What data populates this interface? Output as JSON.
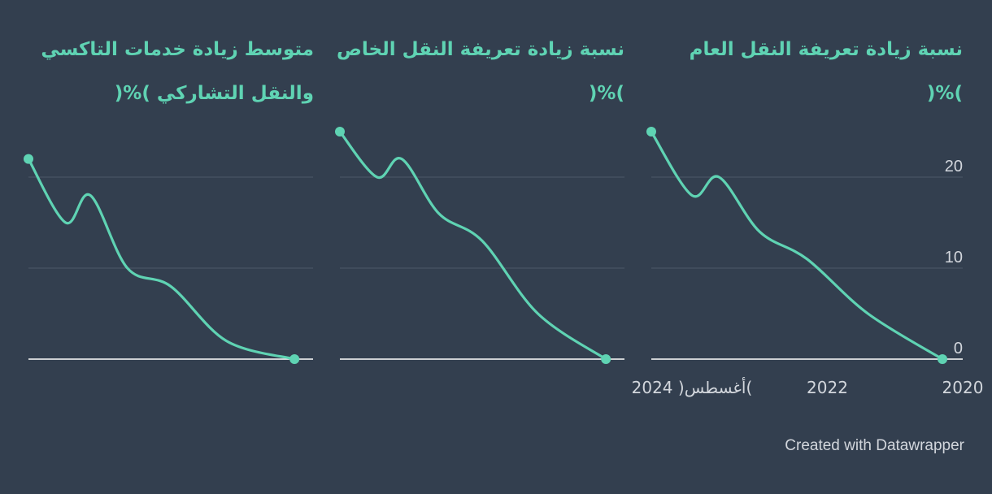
{
  "theme": {
    "background": "#333f4f",
    "accent": "#5fd3b3",
    "grid": "#4e5a69",
    "baseline": "#ffffff",
    "text_muted": "#d2d6dc"
  },
  "chart_data": [
    {
      "type": "line",
      "title": "نسبة زيادة تعريفة النقل العام )%(",
      "x": [
        2024.6,
        2024.0,
        2023.6,
        2023.0,
        2022.3,
        2021.4,
        2020.3
      ],
      "y": [
        25,
        18,
        20,
        14,
        11,
        5,
        0
      ],
      "xlim": [
        2020,
        2024.6
      ],
      "ylim": [
        0,
        25
      ],
      "yticks": [
        0,
        10,
        20
      ],
      "xtick_labels": [
        "2020",
        "2022",
        "2024 )أغسطس("
      ],
      "x_reversed": true,
      "grid": true
    },
    {
      "type": "line",
      "title": "نسبة زيادة تعريفة النقل الخاص )%(",
      "x": [
        2024.6,
        2024.0,
        2023.6,
        2023.0,
        2022.3,
        2021.4,
        2020.3
      ],
      "y": [
        25,
        20,
        22,
        16,
        13,
        5,
        0
      ],
      "xlim": [
        2020,
        2024.6
      ],
      "ylim": [
        0,
        25
      ],
      "yticks": [
        0,
        10,
        20
      ],
      "x_reversed": true,
      "grid": true
    },
    {
      "type": "line",
      "title": "متوسط زيادة خدمات التاكسي والنقل التشاركي )%(",
      "x": [
        2024.6,
        2024.0,
        2023.6,
        2023.0,
        2022.3,
        2021.4,
        2020.3
      ],
      "y": [
        22,
        15,
        18,
        10,
        8,
        2,
        0
      ],
      "xlim": [
        2020,
        2024.6
      ],
      "ylim": [
        0,
        25
      ],
      "yticks": [
        0,
        10,
        20
      ],
      "x_reversed": true,
      "grid": true
    }
  ],
  "footer": "Created with Datawrapper"
}
